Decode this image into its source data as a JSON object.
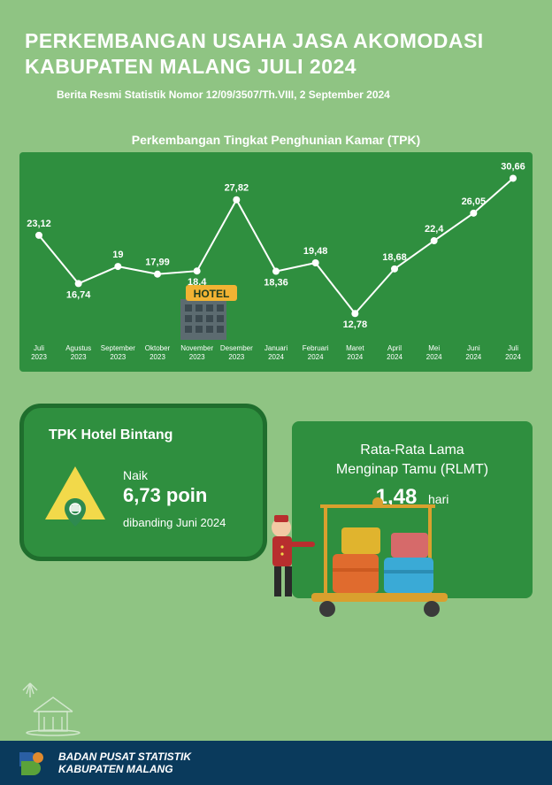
{
  "header": {
    "title_line1": "PERKEMBANGAN  USAHA JASA AKOMODASI",
    "title_line2": "KABUPATEN MALANG JULI 2024",
    "subtitle": "Berita Resmi Statistik Nomor 12/09/3507/Th.VIII, 2 September 2024"
  },
  "line_chart": {
    "title": "Perkembangan Tingkat Penghunian Kamar (TPK)",
    "type": "line",
    "background_color": "#2f8f3f",
    "line_color": "#ffffff",
    "marker_color": "#ffffff",
    "marker_style": "circle",
    "marker_size": 4,
    "line_width": 2,
    "label_color": "#ffffff",
    "label_fontsize": 11,
    "xlabel_fontsize": 8,
    "ylim_min": 10,
    "ylim_max": 32,
    "categories": [
      "Juli 2023",
      "Agustus 2023",
      "September 2023",
      "Oktober 2023",
      "November 2023",
      "Desember 2023",
      "Januari 2024",
      "Februari 2024",
      "Maret 2024",
      "April 2024",
      "Mei 2024",
      "Juni 2024",
      "Juli 2024"
    ],
    "values": [
      23.12,
      16.74,
      19,
      17.99,
      18.4,
      27.82,
      18.36,
      19.48,
      12.78,
      18.68,
      22.4,
      26.05,
      30.66
    ],
    "value_labels": [
      "23,12",
      "16,74",
      "19",
      "17,99",
      "18,4",
      "27,82",
      "18,36",
      "19,48",
      "12,78",
      "18,68",
      "22,4",
      "26,05",
      "30,66"
    ],
    "hotel_sign_text": "HOTEL",
    "hotel_sign_bg": "#f2b333",
    "hotel_sign_text_color": "#1d3a1d",
    "building_color": "#5c6b70",
    "building_window_color": "#3c4a50"
  },
  "card_left": {
    "title": "TPK Hotel Bintang",
    "naik": "Naik",
    "value": "6,73 poin",
    "compared": "dibanding  Juni 2024",
    "bg_color": "#2f8f3f",
    "border_color": "#1f6e2d",
    "triangle_color": "#f2d94a",
    "pin_color": "#2e8a50"
  },
  "card_right": {
    "line1": "Rata-Rata Lama",
    "line2": "Menginap Tamu (RLMT)",
    "value": "1,48",
    "unit": "hari",
    "bg_color": "#2f8f3f",
    "bellboy_red": "#b82e2e",
    "cart_color": "#d9a02e",
    "suitcase_colors": [
      "#e06b2e",
      "#3aaad6",
      "#e0b42e",
      "#d66a6a"
    ]
  },
  "footer": {
    "org_line1": "BADAN PUSAT STATISTIK",
    "org_line2": "KABUPATEN MALANG",
    "bg_color": "#0a3a5c",
    "logo_blue": "#2a5fa4",
    "logo_green": "#5aa23a",
    "logo_orange": "#e08a2e"
  },
  "page": {
    "bg_color": "#8fc483",
    "text_color": "#ffffff"
  }
}
